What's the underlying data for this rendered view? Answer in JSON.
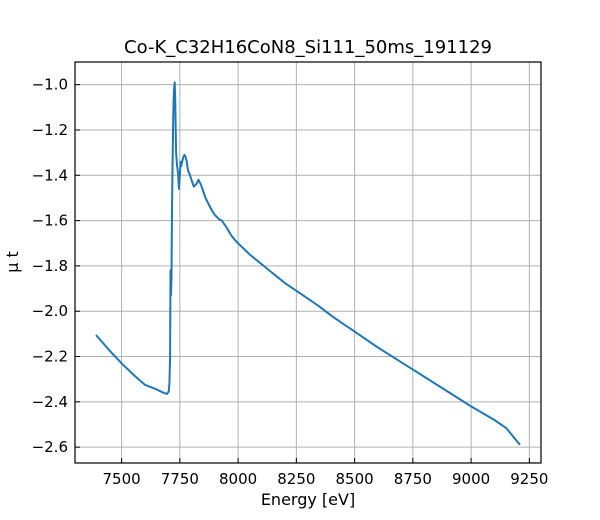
{
  "chart_data": {
    "type": "line",
    "title": "Co-K_C32H16CoN8_Si111_50ms_191129",
    "xlabel": "Energy [eV]",
    "ylabel": "μ t",
    "xlim": [
      7300,
      9300
    ],
    "ylim": [
      -2.67,
      -0.9
    ],
    "xticks": [
      7500,
      7750,
      8000,
      8250,
      8500,
      8750,
      9000,
      9250
    ],
    "yticks": [
      -2.6,
      -2.4,
      -2.2,
      -2.0,
      -1.8,
      -1.6,
      -1.4,
      -1.2,
      -1.0
    ],
    "ytick_labels": [
      "−2.6",
      "−2.4",
      "−2.2",
      "−2.0",
      "−1.8",
      "−1.6",
      "−1.4",
      "−1.2",
      "−1.0"
    ],
    "grid": true,
    "color": "#1f77b4",
    "series": [
      {
        "x": [
          7390,
          7450,
          7500,
          7550,
          7600,
          7650,
          7680,
          7695,
          7702,
          7705,
          7708,
          7710,
          7712,
          7714,
          7716,
          7718,
          7720,
          7722,
          7725,
          7728,
          7730,
          7732,
          7734,
          7736,
          7738,
          7740,
          7743,
          7746,
          7750,
          7753,
          7756,
          7760,
          7765,
          7770,
          7775,
          7780,
          7785,
          7790,
          7800,
          7810,
          7820,
          7830,
          7840,
          7850,
          7860,
          7870,
          7880,
          7890,
          7900,
          7910,
          7920,
          7930,
          7950,
          7970,
          7990,
          8010,
          8030,
          8050,
          8080,
          8110,
          8140,
          8170,
          8200,
          8250,
          8300,
          8350,
          8400,
          8450,
          8500,
          8600,
          8700,
          8800,
          8900,
          9000,
          9100,
          9150,
          9210
        ],
        "y": [
          -2.105,
          -2.175,
          -2.23,
          -2.28,
          -2.325,
          -2.345,
          -2.36,
          -2.365,
          -2.355,
          -2.32,
          -2.2,
          -1.82,
          -1.93,
          -1.85,
          -1.6,
          -1.4,
          -1.25,
          -1.12,
          -1.02,
          -0.99,
          -1.06,
          -1.2,
          -1.3,
          -1.33,
          -1.36,
          -1.37,
          -1.4,
          -1.46,
          -1.4,
          -1.34,
          -1.36,
          -1.34,
          -1.32,
          -1.31,
          -1.32,
          -1.34,
          -1.38,
          -1.39,
          -1.42,
          -1.45,
          -1.44,
          -1.42,
          -1.44,
          -1.47,
          -1.5,
          -1.52,
          -1.54,
          -1.56,
          -1.575,
          -1.585,
          -1.595,
          -1.6,
          -1.63,
          -1.665,
          -1.69,
          -1.71,
          -1.73,
          -1.75,
          -1.775,
          -1.8,
          -1.825,
          -1.85,
          -1.875,
          -1.91,
          -1.945,
          -1.98,
          -2.02,
          -2.055,
          -2.09,
          -2.16,
          -2.225,
          -2.29,
          -2.355,
          -2.42,
          -2.48,
          -2.515,
          -2.59
        ]
      }
    ]
  }
}
